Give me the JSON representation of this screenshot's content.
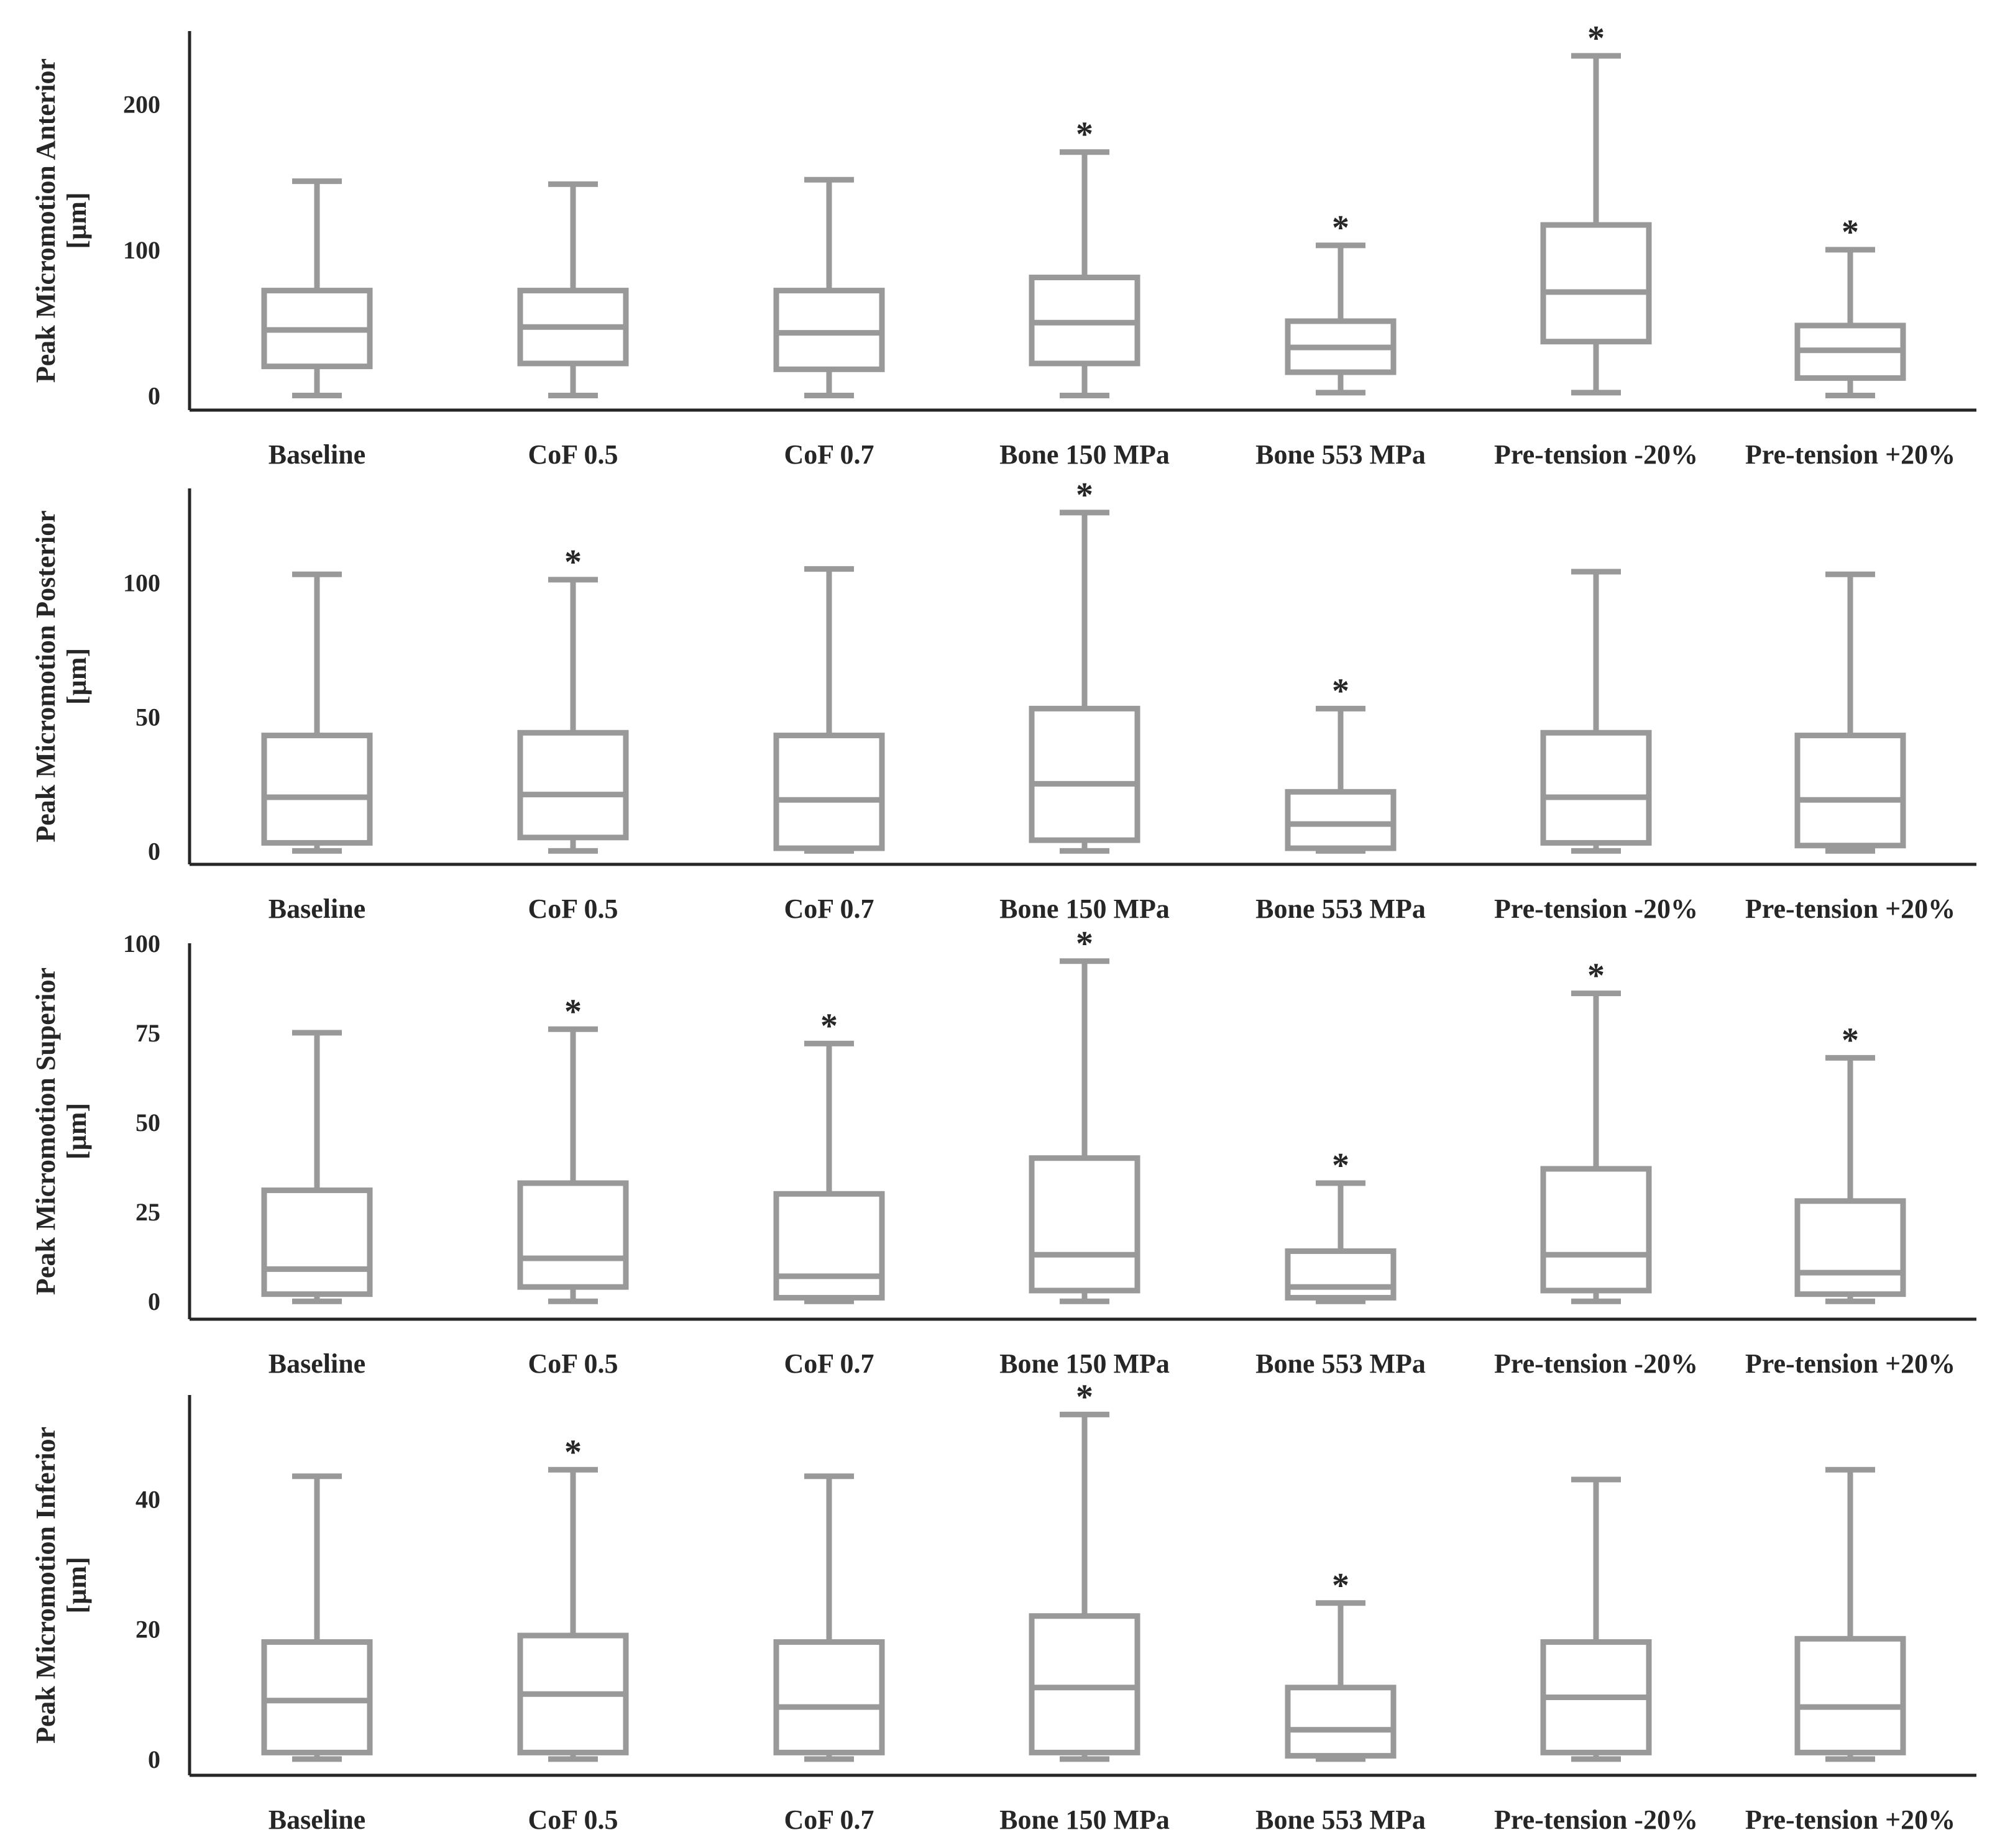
{
  "chart_data": [
    {
      "type": "box",
      "ylabel": "Peak Micromotion Anterior",
      "yunit": "[µm]",
      "yticks": [
        0,
        100,
        200
      ],
      "ylim": [
        -10,
        250
      ],
      "categories": [
        "Baseline",
        "CoF 0.5",
        "CoF 0.7",
        "Bone 150 MPa",
        "Bone 553 MPa",
        "Pre-tension -20%",
        "Pre-tension +20%"
      ],
      "boxes": [
        {
          "min": 0,
          "q1": 20,
          "median": 45,
          "q3": 72,
          "max": 147,
          "sig": ""
        },
        {
          "min": 0,
          "q1": 22,
          "median": 47,
          "q3": 72,
          "max": 145,
          "sig": ""
        },
        {
          "min": 0,
          "q1": 18,
          "median": 43,
          "q3": 72,
          "max": 148,
          "sig": ""
        },
        {
          "min": 0,
          "q1": 22,
          "median": 50,
          "q3": 81,
          "max": 167,
          "sig": "*"
        },
        {
          "min": 2,
          "q1": 16,
          "median": 33,
          "q3": 51,
          "max": 103,
          "sig": "*"
        },
        {
          "min": 2,
          "q1": 37,
          "median": 71,
          "q3": 117,
          "max": 233,
          "sig": "*"
        },
        {
          "min": 0,
          "q1": 12,
          "median": 31,
          "q3": 48,
          "max": 100,
          "sig": "*"
        }
      ]
    },
    {
      "type": "box",
      "ylabel": "Peak Micromotion Posterior",
      "yunit": "[µm]",
      "yticks": [
        0,
        50,
        100
      ],
      "ylim": [
        -5,
        135
      ],
      "categories": [
        "Baseline",
        "CoF 0.5",
        "CoF 0.7",
        "Bone 150 MPa",
        "Bone 553 MPa",
        "Pre-tension -20%",
        "Pre-tension +20%"
      ],
      "boxes": [
        {
          "min": 0,
          "q1": 3,
          "median": 20,
          "q3": 43,
          "max": 103,
          "sig": ""
        },
        {
          "min": 0,
          "q1": 5,
          "median": 21,
          "q3": 44,
          "max": 101,
          "sig": "*"
        },
        {
          "min": 0,
          "q1": 1,
          "median": 19,
          "q3": 43,
          "max": 105,
          "sig": ""
        },
        {
          "min": 0,
          "q1": 4,
          "median": 25,
          "q3": 53,
          "max": 126,
          "sig": "*"
        },
        {
          "min": 0,
          "q1": 1,
          "median": 10,
          "q3": 22,
          "max": 53,
          "sig": "*"
        },
        {
          "min": 0,
          "q1": 3,
          "median": 20,
          "q3": 44,
          "max": 104,
          "sig": ""
        },
        {
          "min": 0,
          "q1": 2,
          "median": 19,
          "q3": 43,
          "max": 103,
          "sig": ""
        }
      ]
    },
    {
      "type": "box",
      "ylabel": "Peak Micromotion Superior",
      "yunit": "[µm]",
      "yticks": [
        0,
        25,
        50,
        75,
        100
      ],
      "ylim": [
        -5,
        100
      ],
      "categories": [
        "Baseline",
        "CoF 0.5",
        "CoF 0.7",
        "Bone 150 MPa",
        "Bone 553 MPa",
        "Pre-tension -20%",
        "Pre-tension +20%"
      ],
      "boxes": [
        {
          "min": 0,
          "q1": 2,
          "median": 9,
          "q3": 31,
          "max": 75,
          "sig": ""
        },
        {
          "min": 0,
          "q1": 4,
          "median": 12,
          "q3": 33,
          "max": 76,
          "sig": "*"
        },
        {
          "min": 0,
          "q1": 1,
          "median": 7,
          "q3": 30,
          "max": 72,
          "sig": "*"
        },
        {
          "min": 0,
          "q1": 3,
          "median": 13,
          "q3": 40,
          "max": 95,
          "sig": "*"
        },
        {
          "min": 0,
          "q1": 1,
          "median": 4,
          "q3": 14,
          "max": 33,
          "sig": "*"
        },
        {
          "min": 0,
          "q1": 3,
          "median": 13,
          "q3": 37,
          "max": 86,
          "sig": "*"
        },
        {
          "min": 0,
          "q1": 2,
          "median": 8,
          "q3": 28,
          "max": 68,
          "sig": "*"
        }
      ]
    },
    {
      "type": "box",
      "ylabel": "Peak Micromotion Inferior",
      "yunit": "[µm]",
      "yticks": [
        0,
        20,
        40
      ],
      "ylim": [
        -2.5,
        56
      ],
      "categories": [
        "Baseline",
        "CoF 0.5",
        "CoF 0.7",
        "Bone 150 MPa",
        "Bone 553 MPa",
        "Pre-tension -20%",
        "Pre-tension +20%"
      ],
      "boxes": [
        {
          "min": 0,
          "q1": 1,
          "median": 9,
          "q3": 18,
          "max": 43.5,
          "sig": ""
        },
        {
          "min": 0,
          "q1": 1,
          "median": 10,
          "q3": 19,
          "max": 44.5,
          "sig": "*"
        },
        {
          "min": 0,
          "q1": 1,
          "median": 8,
          "q3": 18,
          "max": 43.5,
          "sig": ""
        },
        {
          "min": 0,
          "q1": 1,
          "median": 11,
          "q3": 22,
          "max": 53,
          "sig": "*"
        },
        {
          "min": 0,
          "q1": 0.5,
          "median": 4.5,
          "q3": 11,
          "max": 24,
          "sig": "*"
        },
        {
          "min": 0,
          "q1": 1,
          "median": 9.5,
          "q3": 18,
          "max": 43,
          "sig": ""
        },
        {
          "min": 0,
          "q1": 1,
          "median": 8,
          "q3": 18.5,
          "max": 44.5,
          "sig": ""
        }
      ]
    }
  ]
}
